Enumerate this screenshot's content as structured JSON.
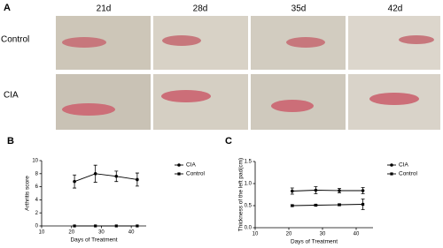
{
  "panel_a": {
    "label": "A",
    "columns": [
      "21d",
      "28d",
      "35d",
      "42d"
    ],
    "rows": [
      "Control",
      "CIA"
    ]
  },
  "chart_data": [
    {
      "type": "line",
      "panel_label": "B",
      "y_label": "Arthritis score",
      "x_label": "Days of Treatment",
      "x": [
        21,
        28,
        35,
        42
      ],
      "xlim": [
        10,
        45
      ],
      "xticks": [
        10,
        20,
        30,
        40
      ],
      "ylim": [
        0,
        10
      ],
      "yticks": [
        0,
        2,
        4,
        6,
        8,
        10
      ],
      "series": [
        {
          "name": "CIA",
          "color": "#000000",
          "marker": "circle",
          "values": [
            6.8,
            8.0,
            7.6,
            7.1
          ],
          "errors": [
            1.0,
            1.3,
            0.8,
            1.0
          ]
        },
        {
          "name": "Control",
          "color": "#000000",
          "marker": "square",
          "values": [
            0,
            0,
            0,
            0
          ],
          "errors": [
            0,
            0,
            0,
            0
          ]
        }
      ]
    },
    {
      "type": "line",
      "panel_label": "C",
      "y_label": "Thickness of the left pad(cm)",
      "x_label": "Days of Treatment",
      "x": [
        21,
        28,
        35,
        42
      ],
      "xlim": [
        10,
        45
      ],
      "xticks": [
        10,
        20,
        30,
        40
      ],
      "ylim": [
        0,
        1.5
      ],
      "yticks": [
        {
          "value": 0,
          "label": "0.0"
        },
        {
          "value": 0.5,
          "label": "0.5"
        },
        {
          "value": 1,
          "label": "1.0"
        },
        {
          "value": 1.5,
          "label": "1.5"
        }
      ],
      "series": [
        {
          "name": "CIA",
          "color": "#000000",
          "marker": "circle",
          "values": [
            0.83,
            0.85,
            0.84,
            0.84
          ],
          "errors": [
            0.07,
            0.08,
            0.05,
            0.07
          ]
        },
        {
          "name": "Control",
          "color": "#000000",
          "marker": "square",
          "values": [
            0.5,
            0.51,
            0.52,
            0.53
          ],
          "errors": [
            0.02,
            0.02,
            0.02,
            0.12
          ]
        }
      ]
    }
  ]
}
